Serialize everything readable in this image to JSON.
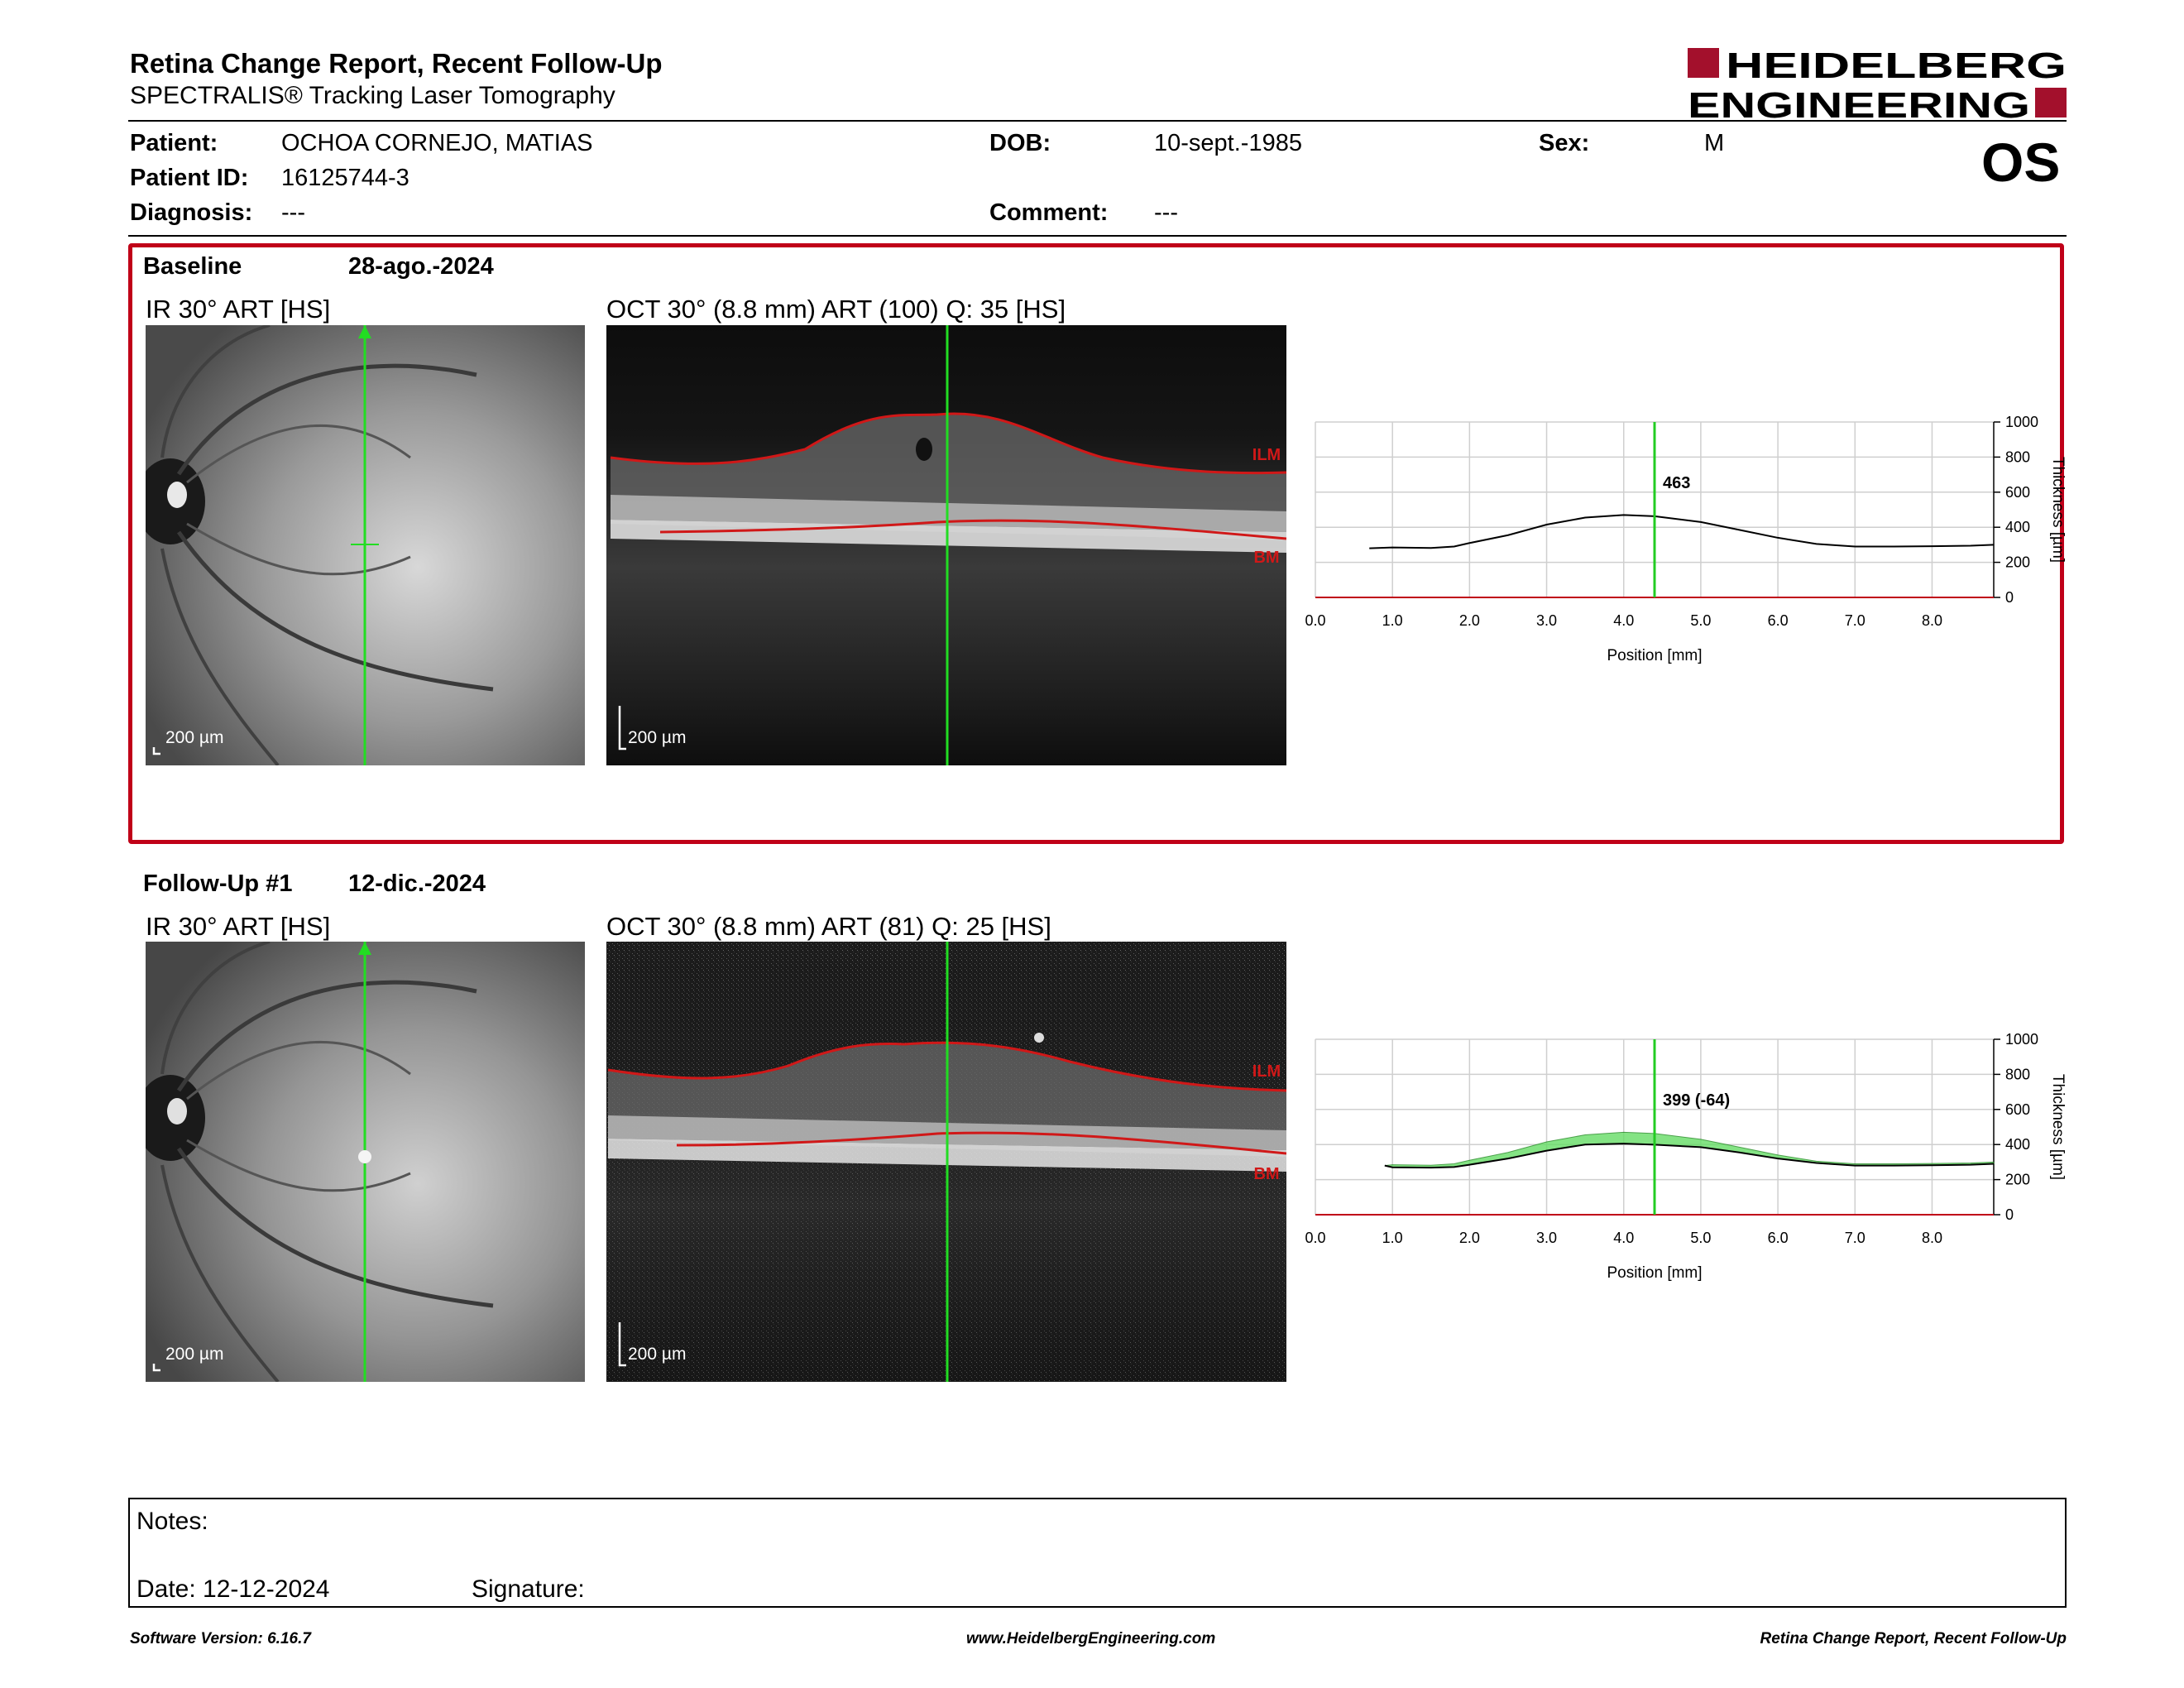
{
  "header": {
    "title": "Retina Change Report, Recent Follow-Up",
    "subtitle": "SPECTRALIS® Tracking Laser Tomography",
    "logo_line1": "HEIDELBERG",
    "logo_line2": "ENGINEERING",
    "eye": "OS"
  },
  "patient": {
    "patient_label": "Patient:",
    "patient_value": "OCHOA CORNEJO, MATIAS",
    "id_label": "Patient ID:",
    "id_value": "16125744-3",
    "diagnosis_label": "Diagnosis:",
    "diagnosis_value": "---",
    "dob_label": "DOB:",
    "dob_value": "10-sept.-1985",
    "comment_label": "Comment:",
    "comment_value": "---",
    "sex_label": "Sex:",
    "sex_value": "M"
  },
  "baseline": {
    "label": "Baseline",
    "date": "28-ago.-2024",
    "ir_caption": "IR 30° ART [HS]",
    "oct_caption": "OCT 30° (8.8 mm) ART (100) Q: 35 [HS]",
    "scale_ir": "200 µm",
    "scale_oct": "200 µm",
    "ilm": "ILM",
    "bm": "BM"
  },
  "followup": {
    "label": "Follow-Up #1",
    "date": "12-dic.-2024",
    "ir_caption": "IR 30° ART [HS]",
    "oct_caption": "OCT 30° (8.8 mm) ART (81) Q: 25 [HS]",
    "scale_ir": "200 µm",
    "scale_oct": "200 µm",
    "ilm": "ILM",
    "bm": "BM"
  },
  "chart_data": [
    {
      "type": "line",
      "title": "",
      "xlabel": "Position [mm]",
      "ylabel": "Thickness [µm]",
      "xlim": [
        0,
        8.8
      ],
      "ylim": [
        0,
        1000
      ],
      "xticks": [
        "0.0",
        "1.0",
        "2.0",
        "3.0",
        "4.0",
        "5.0",
        "6.0",
        "7.0",
        "8.0"
      ],
      "yticks": [
        "0",
        "200",
        "400",
        "600",
        "800",
        "1000"
      ],
      "cursor_x": 4.4,
      "cursor_label": "463",
      "cursor_color": "#22cc22",
      "series": [
        {
          "x": [
            0.7,
            1.0,
            1.5,
            1.8,
            2.0,
            2.5,
            3.0,
            3.5,
            4.0,
            4.4,
            5.0,
            5.5,
            6.0,
            6.5,
            7.0,
            7.5,
            8.0,
            8.5,
            8.8
          ],
          "y": [
            280,
            285,
            282,
            290,
            310,
            355,
            415,
            455,
            470,
            463,
            430,
            385,
            340,
            305,
            290,
            290,
            292,
            295,
            300
          ]
        }
      ]
    },
    {
      "type": "area",
      "title": "",
      "xlabel": "Position [mm]",
      "ylabel": "Thickness [µm]",
      "xlim": [
        0,
        8.8
      ],
      "ylim": [
        0,
        1000
      ],
      "xticks": [
        "0.0",
        "1.0",
        "2.0",
        "3.0",
        "4.0",
        "5.0",
        "6.0",
        "7.0",
        "8.0"
      ],
      "yticks": [
        "0",
        "200",
        "400",
        "600",
        "800",
        "1000"
      ],
      "cursor_x": 4.4,
      "cursor_label": "399 (-64)",
      "cursor_color": "#22cc22",
      "fill_color": "#66dd66",
      "series": [
        {
          "x": [
            0.9,
            1.0,
            1.5,
            1.8,
            2.0,
            2.5,
            3.0,
            3.5,
            4.0,
            4.4,
            5.0,
            5.5,
            6.0,
            6.5,
            7.0,
            7.5,
            8.0,
            8.5,
            8.8
          ],
          "y": [
            280,
            270,
            268,
            272,
            285,
            320,
            365,
            400,
            405,
            399,
            385,
            355,
            320,
            295,
            280,
            280,
            282,
            285,
            290
          ]
        },
        {
          "x": [
            0.9,
            1.0,
            1.5,
            1.8,
            2.0,
            2.5,
            3.0,
            3.5,
            4.0,
            4.4,
            5.0,
            5.5,
            6.0,
            6.5,
            7.0,
            7.5,
            8.0,
            8.5,
            8.8
          ],
          "y": [
            280,
            285,
            282,
            290,
            310,
            355,
            415,
            455,
            470,
            463,
            430,
            385,
            340,
            305,
            290,
            290,
            292,
            295,
            300
          ]
        }
      ]
    }
  ],
  "notes": {
    "notes_label": "Notes:",
    "date_label": "Date: 12-12-2024",
    "signature_label": "Signature:"
  },
  "footer": {
    "software": "Software Version: 6.16.7",
    "website": "www.HeidelbergEngineering.com",
    "report": "Retina Change Report, Recent Follow-Up"
  }
}
